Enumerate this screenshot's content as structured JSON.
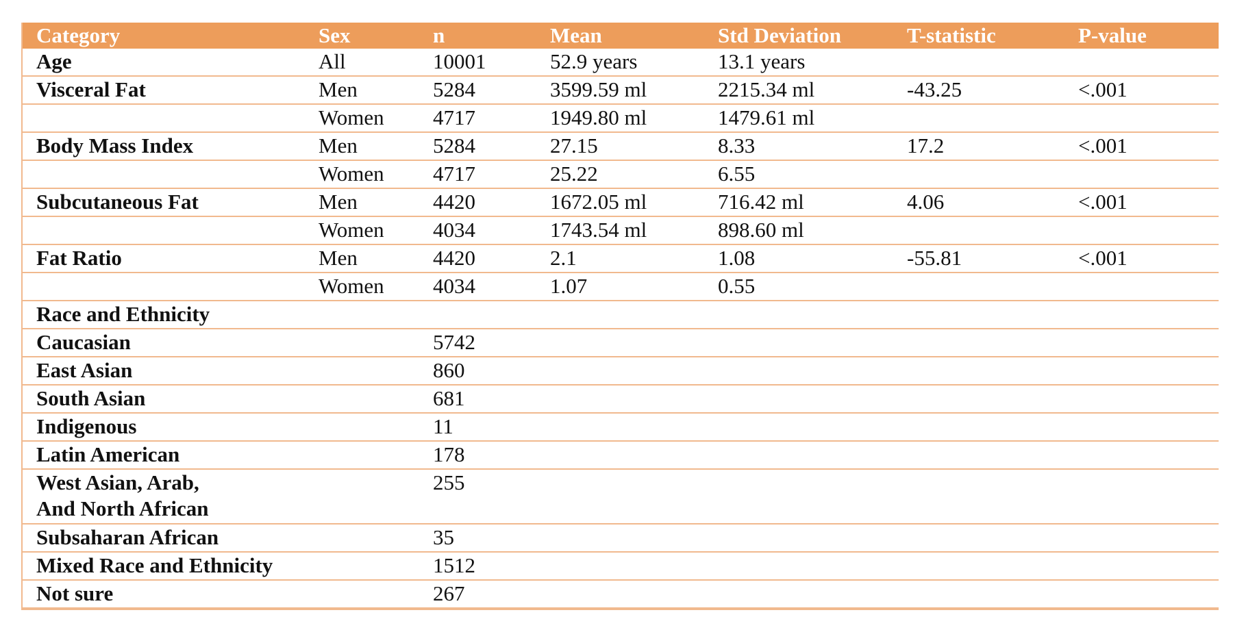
{
  "table": {
    "headers": [
      "Category",
      "Sex",
      "n",
      "Mean",
      "Std Deviation",
      "T-statistic",
      "P-value"
    ],
    "rows": [
      {
        "category": "Age",
        "sex": "All",
        "n": "10001",
        "mean": "52.9 years",
        "sd": "13.1 years",
        "t": "",
        "p": ""
      },
      {
        "category": "Visceral Fat",
        "sex": "Men",
        "n": "5284",
        "mean": "3599.59 ml",
        "sd": "2215.34 ml",
        "t": "-43.25",
        "p": "<.001"
      },
      {
        "category": "",
        "sex": "Women",
        "n": "4717",
        "mean": "1949.80 ml",
        "sd": "1479.61 ml",
        "t": "",
        "p": ""
      },
      {
        "category": "Body Mass Index",
        "sex": "Men",
        "n": "5284",
        "mean": "27.15",
        "sd": "8.33",
        "t": "17.2",
        "p": "<.001"
      },
      {
        "category": "",
        "sex": "Women",
        "n": "4717",
        "mean": "25.22",
        "sd": "6.55",
        "t": "",
        "p": ""
      },
      {
        "category": "Subcutaneous Fat",
        "sex": "Men",
        "n": "4420",
        "mean": "1672.05 ml",
        "sd": "716.42 ml",
        "t": "4.06",
        "p": "<.001"
      },
      {
        "category": "",
        "sex": "Women",
        "n": "4034",
        "mean": "1743.54 ml",
        "sd": "898.60 ml",
        "t": "",
        "p": ""
      },
      {
        "category": "Fat Ratio",
        "sex": "Men",
        "n": "4420",
        "mean": "2.1",
        "sd": "1.08",
        "t": "-55.81",
        "p": "<.001"
      },
      {
        "category": "",
        "sex": "Women",
        "n": "4034",
        "mean": "1.07",
        "sd": "0.55",
        "t": "",
        "p": ""
      },
      {
        "category": "Race and Ethnicity",
        "sex": "",
        "n": "",
        "mean": "",
        "sd": "",
        "t": "",
        "p": ""
      },
      {
        "category": "Caucasian",
        "sex": "",
        "n": "5742",
        "mean": "",
        "sd": "",
        "t": "",
        "p": ""
      },
      {
        "category": "East Asian",
        "sex": "",
        "n": "860",
        "mean": "",
        "sd": "",
        "t": "",
        "p": ""
      },
      {
        "category": "South Asian",
        "sex": "",
        "n": "681",
        "mean": "",
        "sd": "",
        "t": "",
        "p": ""
      },
      {
        "category": "Indigenous",
        "sex": "",
        "n": "11",
        "mean": "",
        "sd": "",
        "t": "",
        "p": ""
      },
      {
        "category": "Latin American",
        "sex": "",
        "n": "178",
        "mean": "",
        "sd": "",
        "t": "",
        "p": ""
      },
      {
        "category": "West Asian, Arab,\nAnd North African",
        "sex": "",
        "n": "255",
        "mean": "",
        "sd": "",
        "t": "",
        "p": ""
      },
      {
        "category": "Subsaharan African",
        "sex": "",
        "n": "35",
        "mean": "",
        "sd": "",
        "t": "",
        "p": ""
      },
      {
        "category": "Mixed Race and Ethnicity",
        "sex": "",
        "n": "1512",
        "mean": "",
        "sd": "",
        "t": "",
        "p": ""
      },
      {
        "category": "Not sure",
        "sex": "",
        "n": "267",
        "mean": "",
        "sd": "",
        "t": "",
        "p": ""
      }
    ]
  },
  "colors": {
    "header_bg": "#ED9D5B",
    "header_text": "#FFFFFF",
    "rule": "#F1B98E",
    "text": "#111111"
  }
}
